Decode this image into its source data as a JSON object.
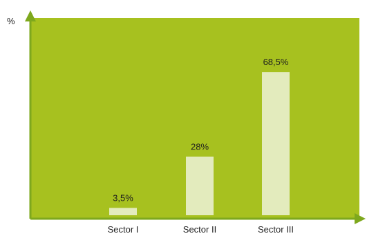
{
  "chart_data": {
    "type": "bar",
    "ylabel": "%",
    "xlabel": "",
    "categories": [
      "Sector I",
      "Sector II",
      "Sector III"
    ],
    "values": [
      3.5,
      28,
      68.5
    ],
    "data_labels": [
      "3,5%",
      "28%",
      "68,5%"
    ],
    "ylim": [
      0,
      100
    ],
    "grid": false,
    "legend": "none"
  },
  "colors": {
    "plot_background": "#a7c11f",
    "bar_fill": "#e3ebbd",
    "axis": "#7ea81d"
  }
}
